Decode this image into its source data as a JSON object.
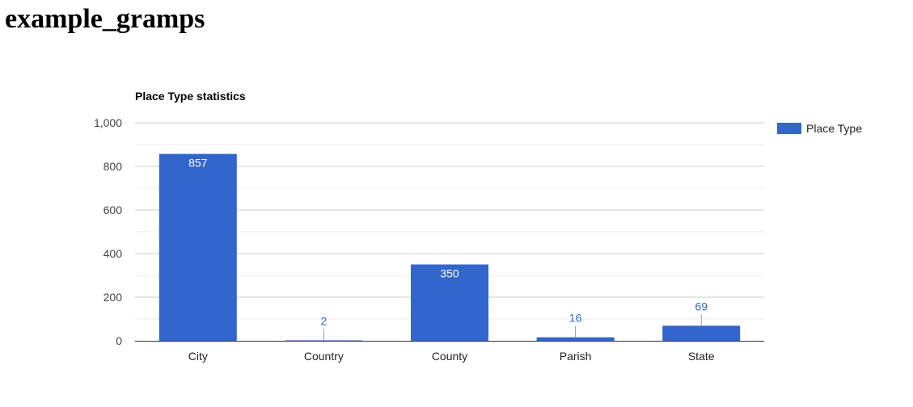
{
  "page": {
    "title": "example_gramps"
  },
  "chart_data": {
    "type": "bar",
    "title": "Place Type statistics",
    "categories": [
      "City",
      "Country",
      "County",
      "Parish",
      "State"
    ],
    "series": [
      {
        "name": "Place Type",
        "values": [
          857,
          2,
          350,
          16,
          69
        ],
        "color": "#3366cc"
      }
    ],
    "ylim": [
      0,
      1000
    ],
    "yticks": [
      0,
      200,
      400,
      600,
      800,
      1000
    ],
    "ytick_labels": [
      "0",
      "200",
      "400",
      "600",
      "800",
      "1,000"
    ],
    "grid": true,
    "legend": "right"
  }
}
